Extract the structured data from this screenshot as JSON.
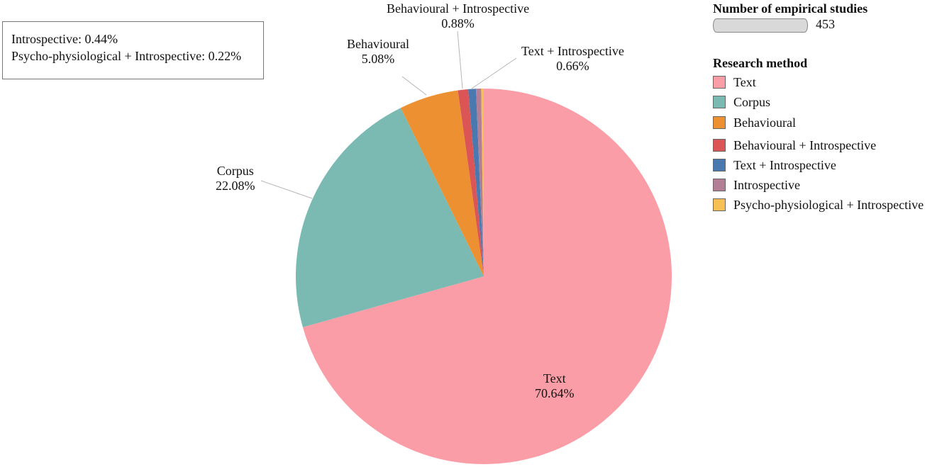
{
  "chart_data": {
    "type": "pie",
    "title": "",
    "total_label": "Number of empirical studies",
    "total": 453,
    "legend_title": "Research method",
    "legend_position": "right",
    "categories": [
      "Text",
      "Corpus",
      "Behavioural",
      "Behavioural + Introspective",
      "Text + Introspective",
      "Introspective",
      "Psycho-physiological + Introspective"
    ],
    "values": [
      70.64,
      22.08,
      5.08,
      0.88,
      0.66,
      0.44,
      0.22
    ],
    "colors": [
      "#fb9da6",
      "#7abab2",
      "#ec9031",
      "#db5557",
      "#4a79b0",
      "#b37f96",
      "#f6c055"
    ],
    "labels": [
      {
        "name": "Text",
        "pct": "70.64%"
      },
      {
        "name": "Corpus",
        "pct": "22.08%"
      },
      {
        "name": "Behavioural",
        "pct": "5.08%"
      },
      {
        "name": "Behavioural + Introspective",
        "pct": "0.88%"
      },
      {
        "name": "Text + Introspective",
        "pct": "0.66%"
      }
    ],
    "note_box": [
      "Introspective: 0.44%",
      "Psycho-physiological + Introspective: 0.22%"
    ]
  },
  "legend": {
    "size_title": "Number of empirical studies",
    "size_value": "453",
    "method_title": "Research method",
    "items": [
      {
        "label": "Text",
        "color": "#fb9da6"
      },
      {
        "label": "Corpus",
        "color": "#7abab2"
      },
      {
        "label": "Behavioural",
        "color": "#ec9031"
      },
      {
        "label": "Behavioural + Introspective",
        "color": "#db5557"
      },
      {
        "label": "Text + Introspective",
        "color": "#4a79b0"
      },
      {
        "label": "Introspective",
        "color": "#b37f96"
      },
      {
        "label": "Psycho-physiological + Introspective",
        "color": "#f6c055"
      }
    ]
  }
}
